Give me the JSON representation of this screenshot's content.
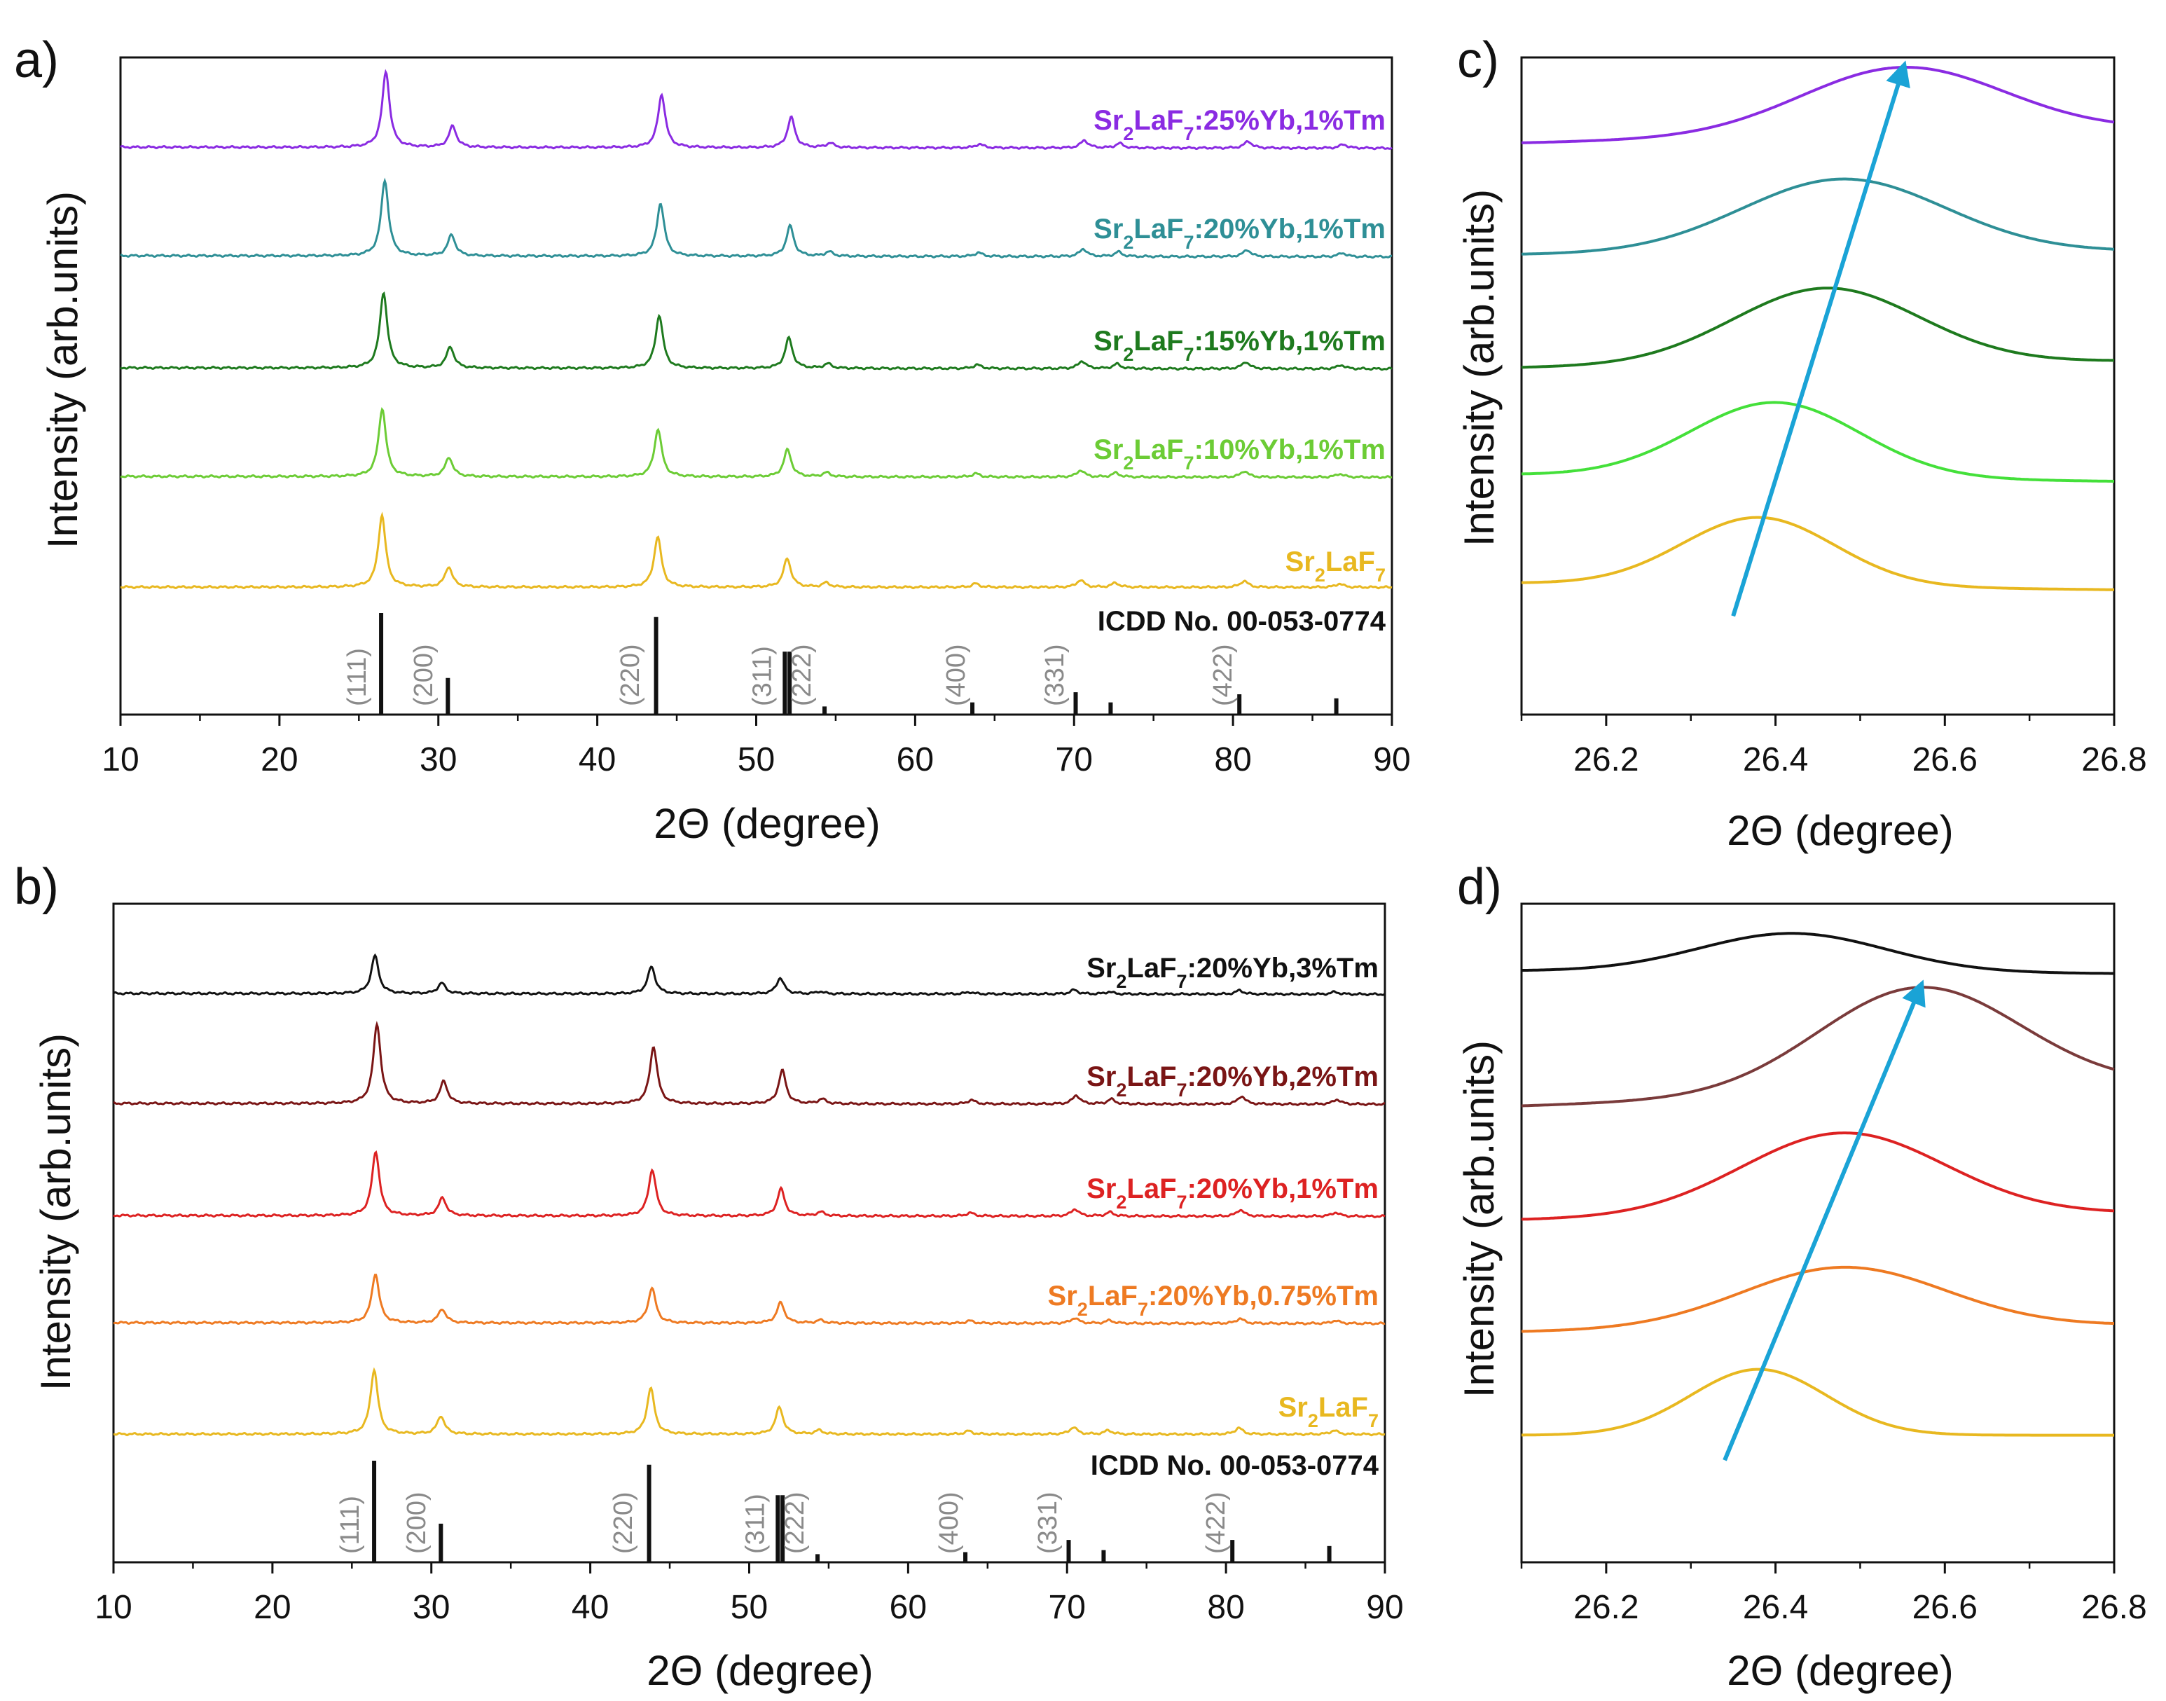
{
  "colors": {
    "purple": "#8a2be2",
    "teal": "#2e8f96",
    "darkgreen": "#1e7a1e",
    "lightgreen": "#6ccc35",
    "yellow": "#e8b820",
    "black": "#111111",
    "darkred": "#7a1515",
    "red": "#dd2222",
    "orange": "#ee7a22",
    "brightgreen": "#44e03a",
    "brown": "#7a3b3b",
    "arrow": "#1aa3d6",
    "hkl": "#8a8a8a"
  },
  "chart_data": [
    {
      "id": "a",
      "panel_label": "a)",
      "type": "line",
      "xlabel": "2Θ (degree)",
      "ylabel": "Intensity (arb.units)",
      "xlim": [
        10,
        90
      ],
      "xticks": [
        "10",
        "20",
        "30",
        "40",
        "50",
        "60",
        "70",
        "80",
        "90"
      ],
      "peaks": [
        {
          "pos": 26.45,
          "h": 1.0
        },
        {
          "pos": 30.65,
          "h": 0.28
        },
        {
          "pos": 43.8,
          "h": 0.7
        },
        {
          "pos": 51.95,
          "h": 0.4
        },
        {
          "pos": 54.4,
          "h": 0.06
        },
        {
          "pos": 63.8,
          "h": 0.05
        },
        {
          "pos": 70.4,
          "h": 0.1
        },
        {
          "pos": 72.6,
          "h": 0.06
        },
        {
          "pos": 80.7,
          "h": 0.09
        },
        {
          "pos": 86.7,
          "h": 0.05
        }
      ],
      "series": [
        {
          "name": "Sr2LaF7:25%Yb,1%Tm",
          "label": {
            "a": "Sr",
            "b": "2",
            "c": "LaF",
            "d": "7",
            "e": ":25%Yb,1%Tm"
          },
          "color_key": "purple",
          "shift": 0.25,
          "amp": 1.0,
          "tilt": 0.1
        },
        {
          "name": "Sr2LaF7:20%Yb,1%Tm",
          "label": {
            "a": "Sr",
            "b": "2",
            "c": "LaF",
            "d": "7",
            "e": ":20%Yb,1%Tm"
          },
          "color_key": "teal",
          "shift": 0.18,
          "amp": 1.0,
          "tilt": 0.1
        },
        {
          "name": "Sr2LaF7:15%Yb,1%Tm",
          "label": {
            "a": "Sr",
            "b": "2",
            "c": "LaF",
            "d": "7",
            "e": ":15%Yb,1%Tm"
          },
          "color_key": "darkgreen",
          "shift": 0.1,
          "amp": 1.0,
          "tilt": 0.1
        },
        {
          "name": "Sr2LaF7:10%Yb,1%Tm",
          "label": {
            "a": "Sr",
            "b": "2",
            "c": "LaF",
            "d": "7",
            "e": ":10%Yb,1%Tm"
          },
          "color_key": "lightgreen",
          "shift": 0.02,
          "amp": 0.9,
          "tilt": 0.08
        },
        {
          "name": "Sr2LaF7",
          "label": {
            "a": "Sr",
            "b": "2",
            "c": "LaF",
            "d": "7",
            "e": ""
          },
          "color_key": "yellow",
          "shift": 0.0,
          "amp": 0.95,
          "tilt": 0.02
        }
      ],
      "reference": {
        "label": "ICDD No. 00-053-0774",
        "lines": [
          {
            "pos": 26.4,
            "rel": 1.0
          },
          {
            "pos": 30.6,
            "rel": 0.36
          },
          {
            "pos": 43.7,
            "rel": 0.96
          },
          {
            "pos": 51.8,
            "rel": 0.62
          },
          {
            "pos": 52.1,
            "rel": 0.62
          },
          {
            "pos": 54.3,
            "rel": 0.08
          },
          {
            "pos": 63.6,
            "rel": 0.12
          },
          {
            "pos": 70.1,
            "rel": 0.22
          },
          {
            "pos": 72.3,
            "rel": 0.12
          },
          {
            "pos": 80.4,
            "rel": 0.2
          },
          {
            "pos": 86.5,
            "rel": 0.16
          }
        ],
        "hkl": [
          {
            "text": "(111)",
            "pos": 24.8
          },
          {
            "text": "(200)",
            "pos": 29.0
          },
          {
            "text": "(220)",
            "pos": 42.0
          },
          {
            "text": "(311)",
            "pos": 50.3
          },
          {
            "text": "(222)",
            "pos": 52.8
          },
          {
            "text": "(400)",
            "pos": 62.5
          },
          {
            "text": "(331)",
            "pos": 68.7
          },
          {
            "text": "(422)",
            "pos": 79.3
          }
        ]
      }
    },
    {
      "id": "b",
      "panel_label": "b)",
      "type": "line",
      "xlabel": "2Θ (degree)",
      "ylabel": "Intensity (arb.units)",
      "xlim": [
        10,
        90
      ],
      "xticks": [
        "10",
        "20",
        "30",
        "40",
        "50",
        "60",
        "70",
        "80",
        "90"
      ],
      "peaks": [
        {
          "pos": 26.4,
          "h": 1.0
        },
        {
          "pos": 30.6,
          "h": 0.28
        },
        {
          "pos": 43.8,
          "h": 0.72
        },
        {
          "pos": 51.9,
          "h": 0.42
        },
        {
          "pos": 54.4,
          "h": 0.06
        },
        {
          "pos": 63.8,
          "h": 0.05
        },
        {
          "pos": 70.4,
          "h": 0.11
        },
        {
          "pos": 72.6,
          "h": 0.06
        },
        {
          "pos": 80.8,
          "h": 0.1
        },
        {
          "pos": 86.8,
          "h": 0.06
        }
      ],
      "series": [
        {
          "name": "Sr2LaF7:20%Yb,3%Tm",
          "label": {
            "a": "Sr",
            "b": "2",
            "c": "LaF",
            "d": "7",
            "e": ":20%Yb,3%Tm"
          },
          "color_key": "black",
          "shift": 0.05,
          "amp": 0.5,
          "tilt": 0.08
        },
        {
          "name": "Sr2LaF7:20%Yb,2%Tm",
          "label": {
            "a": "Sr",
            "b": "2",
            "c": "LaF",
            "d": "7",
            "e": ":20%Yb,2%Tm"
          },
          "color_key": "darkred",
          "shift": 0.18,
          "amp": 1.05,
          "tilt": 0.08
        },
        {
          "name": "Sr2LaF7:20%Yb,1%Tm",
          "label": {
            "a": "Sr",
            "b": "2",
            "c": "LaF",
            "d": "7",
            "e": ":20%Yb,1%Tm"
          },
          "color_key": "red",
          "shift": 0.1,
          "amp": 0.85,
          "tilt": 0.08
        },
        {
          "name": "Sr2LaF7:20%Yb,0.75%Tm",
          "label": {
            "a": "Sr",
            "b": "2",
            "c": "LaF",
            "d": "7",
            "e": ":20%Yb,0.75%Tm"
          },
          "color_key": "orange",
          "shift": 0.08,
          "amp": 0.65,
          "tilt": 0.08
        },
        {
          "name": "Sr2LaF7",
          "label": {
            "a": "Sr",
            "b": "2",
            "c": "LaF",
            "d": "7",
            "e": ""
          },
          "color_key": "yellow",
          "shift": 0.0,
          "amp": 0.85,
          "tilt": 0.02
        }
      ],
      "reference": {
        "label": "ICDD No. 00-053-0774",
        "lines": [
          {
            "pos": 26.4,
            "rel": 1.0
          },
          {
            "pos": 30.6,
            "rel": 0.38
          },
          {
            "pos": 43.7,
            "rel": 0.96
          },
          {
            "pos": 51.8,
            "rel": 0.66
          },
          {
            "pos": 52.1,
            "rel": 0.66
          },
          {
            "pos": 54.3,
            "rel": 0.08
          },
          {
            "pos": 63.6,
            "rel": 0.1
          },
          {
            "pos": 70.1,
            "rel": 0.22
          },
          {
            "pos": 72.3,
            "rel": 0.12
          },
          {
            "pos": 80.4,
            "rel": 0.22
          },
          {
            "pos": 86.5,
            "rel": 0.16
          }
        ],
        "hkl": [
          {
            "text": "(111)",
            "pos": 24.8
          },
          {
            "text": "(200)",
            "pos": 29.0
          },
          {
            "text": "(220)",
            "pos": 42.0
          },
          {
            "text": "(311)",
            "pos": 50.3
          },
          {
            "text": "(222)",
            "pos": 52.8
          },
          {
            "text": "(400)",
            "pos": 62.5
          },
          {
            "text": "(331)",
            "pos": 68.7
          },
          {
            "text": "(422)",
            "pos": 79.3
          }
        ]
      }
    },
    {
      "id": "c",
      "panel_label": "c)",
      "type": "line",
      "xlabel": "2Θ (degree)",
      "ylabel": "Intensity (arb.units)",
      "xlim": [
        26.1,
        26.8
      ],
      "xticks": [
        "26.2",
        "26.4",
        "26.6",
        "26.8"
      ],
      "series": [
        {
          "name": "Sr2LaF7:25%Yb,1%Tm",
          "color_key": "purple",
          "center": 26.55,
          "base_left": 0.87,
          "base_right": 0.89,
          "peak": 0.985,
          "width": 0.12
        },
        {
          "name": "Sr2LaF7:20%Yb,1%Tm",
          "color_key": "teal",
          "center": 26.48,
          "base_left": 0.7,
          "base_right": 0.705,
          "peak": 0.815,
          "width": 0.12
        },
        {
          "name": "Sr2LaF7:15%Yb,1%Tm",
          "color_key": "darkgreen",
          "center": 26.46,
          "base_left": 0.528,
          "base_right": 0.538,
          "peak": 0.649,
          "width": 0.11
        },
        {
          "name": "Sr2LaF7:10%Yb,1%Tm",
          "color_key": "brightgreen",
          "center": 26.4,
          "base_left": 0.365,
          "base_right": 0.355,
          "peak": 0.475,
          "width": 0.1
        },
        {
          "name": "Sr2LaF7",
          "color_key": "yellow",
          "center": 26.38,
          "base_left": 0.2,
          "base_right": 0.19,
          "peak": 0.3,
          "width": 0.09
        }
      ],
      "arrow": {
        "from": [
          26.35,
          0.15
        ],
        "to": [
          26.55,
          0.98
        ]
      }
    },
    {
      "id": "d",
      "panel_label": "d)",
      "type": "line",
      "xlabel": "2Θ (degree)",
      "ylabel": "Intensity (arb.units)",
      "xlim": [
        26.1,
        26.8
      ],
      "xticks": [
        "26.2",
        "26.4",
        "26.6",
        "26.8"
      ],
      "series": [
        {
          "name": "Sr2LaF7:20%Yb,3%Tm",
          "color_key": "black",
          "center": 26.42,
          "base_left": 0.898,
          "base_right": 0.894,
          "peak": 0.955,
          "width": 0.11
        },
        {
          "name": "Sr2LaF7:20%Yb,2%Tm",
          "color_key": "brown",
          "center": 26.57,
          "base_left": 0.693,
          "base_right": 0.723,
          "peak": 0.873,
          "width": 0.12
        },
        {
          "name": "Sr2LaF7:20%Yb,1%Tm",
          "color_key": "red",
          "center": 26.48,
          "base_left": 0.52,
          "base_right": 0.53,
          "peak": 0.652,
          "width": 0.12
        },
        {
          "name": "Sr2LaF7:20%Yb,0.75%Tm",
          "color_key": "orange",
          "center": 26.48,
          "base_left": 0.35,
          "base_right": 0.36,
          "peak": 0.448,
          "width": 0.12
        },
        {
          "name": "Sr2LaF7",
          "color_key": "yellow",
          "center": 26.38,
          "base_left": 0.193,
          "base_right": 0.193,
          "peak": 0.293,
          "width": 0.08
        }
      ],
      "arrow": {
        "from": [
          26.34,
          0.155
        ],
        "to": [
          26.57,
          0.87
        ]
      }
    }
  ]
}
